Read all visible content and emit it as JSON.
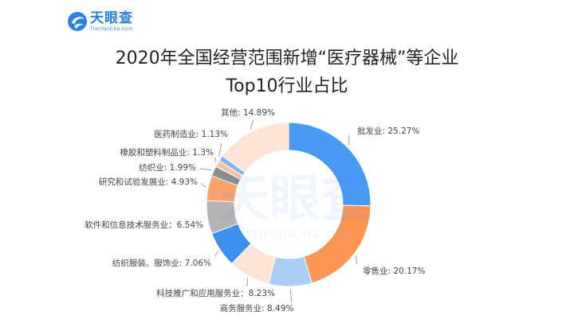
{
  "logo": {
    "name_cn": "天眼查",
    "name_en": "TianYanCha.com",
    "color": "#2d7fe0"
  },
  "watermark": {
    "cn": "天眼查",
    "en": "TianYanCha.com"
  },
  "title": {
    "line1": "2020年全国经营范围新增“医疗器械”等企业",
    "line2": "Top10行业占比"
  },
  "chart_data": {
    "type": "pie",
    "variant": "donut",
    "title": "2020年全国经营范围新增“医疗器械”等企业 Top10行业占比",
    "unit": "%",
    "start_angle": "12 o'clock, clockwise",
    "categories": [
      "批发业",
      "零售业",
      "商务服务业",
      "科技推广和应用服务业",
      "纺织服装、服饰业",
      "软件和信息技术服务业",
      "研究和试验发展业",
      "纺织业",
      "橡胶和塑料制品业",
      "医药制造业",
      "其他"
    ],
    "values": [
      25.27,
      20.17,
      8.49,
      8.23,
      7.06,
      6.54,
      4.93,
      1.99,
      1.3,
      1.13,
      14.89
    ],
    "colors": [
      "#4a9af5",
      "#fb9655",
      "#a9cdf5",
      "#fde2d5",
      "#3d8ff0",
      "#b4b4b4",
      "#fba271",
      "#8c8c8c",
      "#fcc3a2",
      "#80b4f0",
      "#fde4d6"
    ],
    "labels": [
      "批发业: 25.27%",
      "零售业: 20.17%",
      "商务服务业: 8.49%",
      "科技推广和应用服务业：8.23%",
      "纺织服装、服饰业: 7.06%",
      "软件和信息技术服务业：6.54%",
      "研究和试验发展业: 4.93%",
      "纺织业: 1.99%",
      "橡胶和塑料制品业: 1.3%",
      "医药制造业: 1.13%",
      "其他: 14.89%"
    ],
    "legend": "none (labels with leader lines)"
  }
}
